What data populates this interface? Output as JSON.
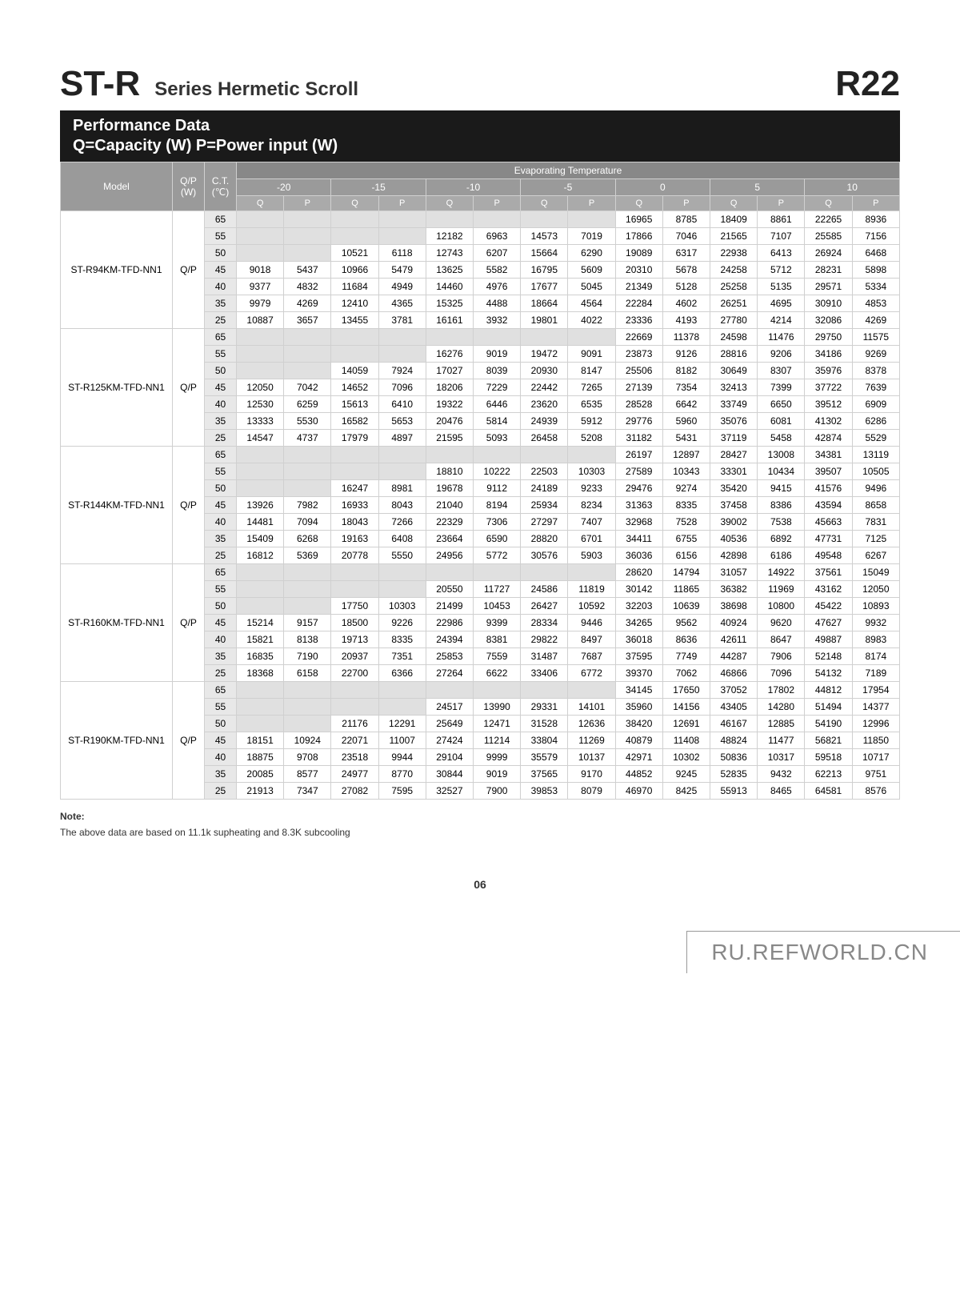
{
  "title": {
    "main": "ST-R",
    "sub": "Series Hermetic Scroll",
    "right": "R22"
  },
  "blackbar": {
    "line1": "Performance Data",
    "line2": "Q=Capacity (W) P=Power input (W)"
  },
  "headers": {
    "model": "Model",
    "qp": "Q/P (W)",
    "ct": "C.T. (℃)",
    "evap": "Evaporating Temperature",
    "temps": [
      "-20",
      "-15",
      "-10",
      "-5",
      "0",
      "5",
      "10"
    ],
    "qp_sub": [
      "Q",
      "P"
    ]
  },
  "models": [
    {
      "name": "ST-R94KM-TFD-NN1",
      "qp": "Q/P",
      "rows": [
        {
          "ct": "65",
          "d": [
            "",
            "",
            "",
            "",
            "",
            "",
            "",
            "",
            "16965",
            "8785",
            "18409",
            "8861",
            "22265",
            "8936"
          ]
        },
        {
          "ct": "55",
          "d": [
            "",
            "",
            "",
            "",
            "12182",
            "6963",
            "14573",
            "7019",
            "17866",
            "7046",
            "21565",
            "7107",
            "25585",
            "7156"
          ]
        },
        {
          "ct": "50",
          "d": [
            "",
            "",
            "10521",
            "6118",
            "12743",
            "6207",
            "15664",
            "6290",
            "19089",
            "6317",
            "22938",
            "6413",
            "26924",
            "6468"
          ]
        },
        {
          "ct": "45",
          "d": [
            "9018",
            "5437",
            "10966",
            "5479",
            "13625",
            "5582",
            "16795",
            "5609",
            "20310",
            "5678",
            "24258",
            "5712",
            "28231",
            "5898"
          ]
        },
        {
          "ct": "40",
          "d": [
            "9377",
            "4832",
            "11684",
            "4949",
            "14460",
            "4976",
            "17677",
            "5045",
            "21349",
            "5128",
            "25258",
            "5135",
            "29571",
            "5334"
          ]
        },
        {
          "ct": "35",
          "d": [
            "9979",
            "4269",
            "12410",
            "4365",
            "15325",
            "4488",
            "18664",
            "4564",
            "22284",
            "4602",
            "26251",
            "4695",
            "30910",
            "4853"
          ]
        },
        {
          "ct": "25",
          "d": [
            "10887",
            "3657",
            "13455",
            "3781",
            "16161",
            "3932",
            "19801",
            "4022",
            "23336",
            "4193",
            "27780",
            "4214",
            "32086",
            "4269"
          ]
        }
      ]
    },
    {
      "name": "ST-R125KM-TFD-NN1",
      "qp": "Q/P",
      "rows": [
        {
          "ct": "65",
          "d": [
            "",
            "",
            "",
            "",
            "",
            "",
            "",
            "",
            "22669",
            "11378",
            "24598",
            "11476",
            "29750",
            "11575"
          ]
        },
        {
          "ct": "55",
          "d": [
            "",
            "",
            "",
            "",
            "16276",
            "9019",
            "19472",
            "9091",
            "23873",
            "9126",
            "28816",
            "9206",
            "34186",
            "9269"
          ]
        },
        {
          "ct": "50",
          "d": [
            "",
            "",
            "14059",
            "7924",
            "17027",
            "8039",
            "20930",
            "8147",
            "25506",
            "8182",
            "30649",
            "8307",
            "35976",
            "8378"
          ]
        },
        {
          "ct": "45",
          "d": [
            "12050",
            "7042",
            "14652",
            "7096",
            "18206",
            "7229",
            "22442",
            "7265",
            "27139",
            "7354",
            "32413",
            "7399",
            "37722",
            "7639"
          ]
        },
        {
          "ct": "40",
          "d": [
            "12530",
            "6259",
            "15613",
            "6410",
            "19322",
            "6446",
            "23620",
            "6535",
            "28528",
            "6642",
            "33749",
            "6650",
            "39512",
            "6909"
          ]
        },
        {
          "ct": "35",
          "d": [
            "13333",
            "5530",
            "16582",
            "5653",
            "20476",
            "5814",
            "24939",
            "5912",
            "29776",
            "5960",
            "35076",
            "6081",
            "41302",
            "6286"
          ]
        },
        {
          "ct": "25",
          "d": [
            "14547",
            "4737",
            "17979",
            "4897",
            "21595",
            "5093",
            "26458",
            "5208",
            "31182",
            "5431",
            "37119",
            "5458",
            "42874",
            "5529"
          ]
        }
      ]
    },
    {
      "name": "ST-R144KM-TFD-NN1",
      "qp": "Q/P",
      "rows": [
        {
          "ct": "65",
          "d": [
            "",
            "",
            "",
            "",
            "",
            "",
            "",
            "",
            "26197",
            "12897",
            "28427",
            "13008",
            "34381",
            "13119"
          ]
        },
        {
          "ct": "55",
          "d": [
            "",
            "",
            "",
            "",
            "18810",
            "10222",
            "22503",
            "10303",
            "27589",
            "10343",
            "33301",
            "10434",
            "39507",
            "10505"
          ]
        },
        {
          "ct": "50",
          "d": [
            "",
            "",
            "16247",
            "8981",
            "19678",
            "9112",
            "24189",
            "9233",
            "29476",
            "9274",
            "35420",
            "9415",
            "41576",
            "9496"
          ]
        },
        {
          "ct": "45",
          "d": [
            "13926",
            "7982",
            "16933",
            "8043",
            "21040",
            "8194",
            "25934",
            "8234",
            "31363",
            "8335",
            "37458",
            "8386",
            "43594",
            "8658"
          ]
        },
        {
          "ct": "40",
          "d": [
            "14481",
            "7094",
            "18043",
            "7266",
            "22329",
            "7306",
            "27297",
            "7407",
            "32968",
            "7528",
            "39002",
            "7538",
            "45663",
            "7831"
          ]
        },
        {
          "ct": "35",
          "d": [
            "15409",
            "6268",
            "19163",
            "6408",
            "23664",
            "6590",
            "28820",
            "6701",
            "34411",
            "6755",
            "40536",
            "6892",
            "47731",
            "7125"
          ]
        },
        {
          "ct": "25",
          "d": [
            "16812",
            "5369",
            "20778",
            "5550",
            "24956",
            "5772",
            "30576",
            "5903",
            "36036",
            "6156",
            "42898",
            "6186",
            "49548",
            "6267"
          ]
        }
      ]
    },
    {
      "name": "ST-R160KM-TFD-NN1",
      "qp": "Q/P",
      "rows": [
        {
          "ct": "65",
          "d": [
            "",
            "",
            "",
            "",
            "",
            "",
            "",
            "",
            "28620",
            "14794",
            "31057",
            "14922",
            "37561",
            "15049"
          ]
        },
        {
          "ct": "55",
          "d": [
            "",
            "",
            "",
            "",
            "20550",
            "11727",
            "24586",
            "11819",
            "30142",
            "11865",
            "36382",
            "11969",
            "43162",
            "12050"
          ]
        },
        {
          "ct": "50",
          "d": [
            "",
            "",
            "17750",
            "10303",
            "21499",
            "10453",
            "26427",
            "10592",
            "32203",
            "10639",
            "38698",
            "10800",
            "45422",
            "10893"
          ]
        },
        {
          "ct": "45",
          "d": [
            "15214",
            "9157",
            "18500",
            "9226",
            "22986",
            "9399",
            "28334",
            "9446",
            "34265",
            "9562",
            "40924",
            "9620",
            "47627",
            "9932"
          ]
        },
        {
          "ct": "40",
          "d": [
            "15821",
            "8138",
            "19713",
            "8335",
            "24394",
            "8381",
            "29822",
            "8497",
            "36018",
            "8636",
            "42611",
            "8647",
            "49887",
            "8983"
          ]
        },
        {
          "ct": "35",
          "d": [
            "16835",
            "7190",
            "20937",
            "7351",
            "25853",
            "7559",
            "31487",
            "7687",
            "37595",
            "7749",
            "44287",
            "7906",
            "52148",
            "8174"
          ]
        },
        {
          "ct": "25",
          "d": [
            "18368",
            "6158",
            "22700",
            "6366",
            "27264",
            "6622",
            "33406",
            "6772",
            "39370",
            "7062",
            "46866",
            "7096",
            "54132",
            "7189"
          ]
        }
      ]
    },
    {
      "name": "ST-R190KM-TFD-NN1",
      "qp": "Q/P",
      "rows": [
        {
          "ct": "65",
          "d": [
            "",
            "",
            "",
            "",
            "",
            "",
            "",
            "",
            "34145",
            "17650",
            "37052",
            "17802",
            "44812",
            "17954"
          ]
        },
        {
          "ct": "55",
          "d": [
            "",
            "",
            "",
            "",
            "24517",
            "13990",
            "29331",
            "14101",
            "35960",
            "14156",
            "43405",
            "14280",
            "51494",
            "14377"
          ]
        },
        {
          "ct": "50",
          "d": [
            "",
            "",
            "21176",
            "12291",
            "25649",
            "12471",
            "31528",
            "12636",
            "38420",
            "12691",
            "46167",
            "12885",
            "54190",
            "12996"
          ]
        },
        {
          "ct": "45",
          "d": [
            "18151",
            "10924",
            "22071",
            "11007",
            "27424",
            "11214",
            "33804",
            "11269",
            "40879",
            "11408",
            "48824",
            "11477",
            "56821",
            "11850"
          ]
        },
        {
          "ct": "40",
          "d": [
            "18875",
            "9708",
            "23518",
            "9944",
            "29104",
            "9999",
            "35579",
            "10137",
            "42971",
            "10302",
            "50836",
            "10317",
            "59518",
            "10717"
          ]
        },
        {
          "ct": "35",
          "d": [
            "20085",
            "8577",
            "24977",
            "8770",
            "30844",
            "9019",
            "37565",
            "9170",
            "44852",
            "9245",
            "52835",
            "9432",
            "62213",
            "9751"
          ]
        },
        {
          "ct": "25",
          "d": [
            "21913",
            "7347",
            "27082",
            "7595",
            "32527",
            "7900",
            "39853",
            "8079",
            "46970",
            "8425",
            "55913",
            "8465",
            "64581",
            "8576"
          ]
        }
      ]
    }
  ],
  "note": {
    "label": "Note:",
    "text": "The above data are based on 11.1k supheating and 8.3K subcooling"
  },
  "pagenum": "06",
  "footer": "RU.REFWORLD.CN"
}
